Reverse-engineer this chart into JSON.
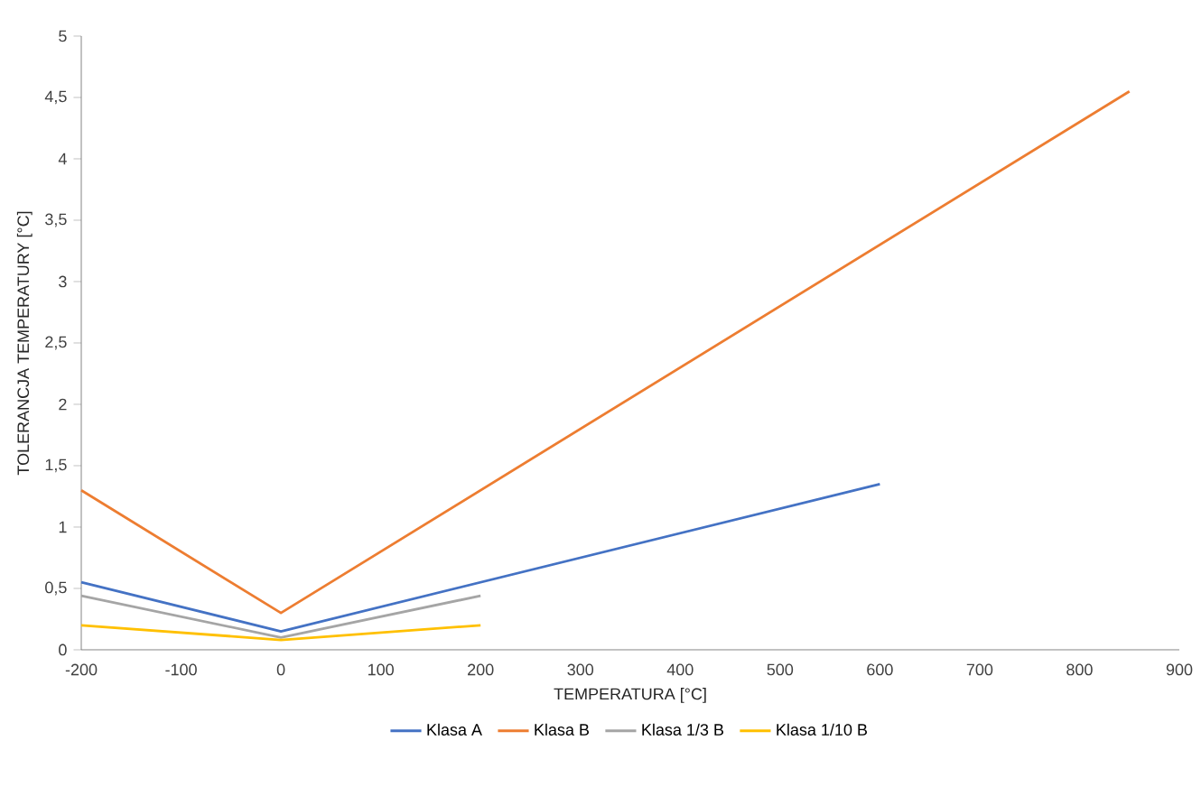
{
  "chart_data": {
    "type": "line",
    "xlabel": "TEMPERATURA [°C]",
    "ylabel": "TOLERANCJA TEMPERATURY [°C]",
    "xlim": [
      -200,
      900
    ],
    "xticks": [
      -200,
      -100,
      0,
      100,
      200,
      300,
      400,
      500,
      600,
      700,
      800,
      900
    ],
    "ylim": [
      0,
      5
    ],
    "yticks": [
      0,
      {
        "value": 0.5,
        "label": "0,5"
      },
      1,
      {
        "value": 1.5,
        "label": "1,5"
      },
      2,
      {
        "value": 2.5,
        "label": "2,5"
      },
      3,
      {
        "value": 3.5,
        "label": "3,5"
      },
      4,
      {
        "value": 4.5,
        "label": "4,5"
      },
      5
    ],
    "legend": "bottom",
    "marker": "none",
    "line_style": "solid",
    "series": [
      {
        "name": "Klasa A",
        "color": "#4472c4",
        "x": [
          -200,
          0,
          600
        ],
        "values": [
          0.55,
          0.15,
          1.35
        ]
      },
      {
        "name": "Klasa B",
        "color": "#ed7d31",
        "x": [
          -200,
          0,
          850
        ],
        "values": [
          1.3,
          0.3,
          4.55
        ]
      },
      {
        "name": "Klasa 1/3 B",
        "color": "#a5a5a5",
        "x": [
          -200,
          0,
          200
        ],
        "values": [
          0.44,
          0.1,
          0.44
        ]
      },
      {
        "name": "Klasa 1/10 B",
        "color": "#ffc000",
        "x": [
          -200,
          0,
          200
        ],
        "values": [
          0.2,
          0.08,
          0.2
        ]
      }
    ]
  }
}
